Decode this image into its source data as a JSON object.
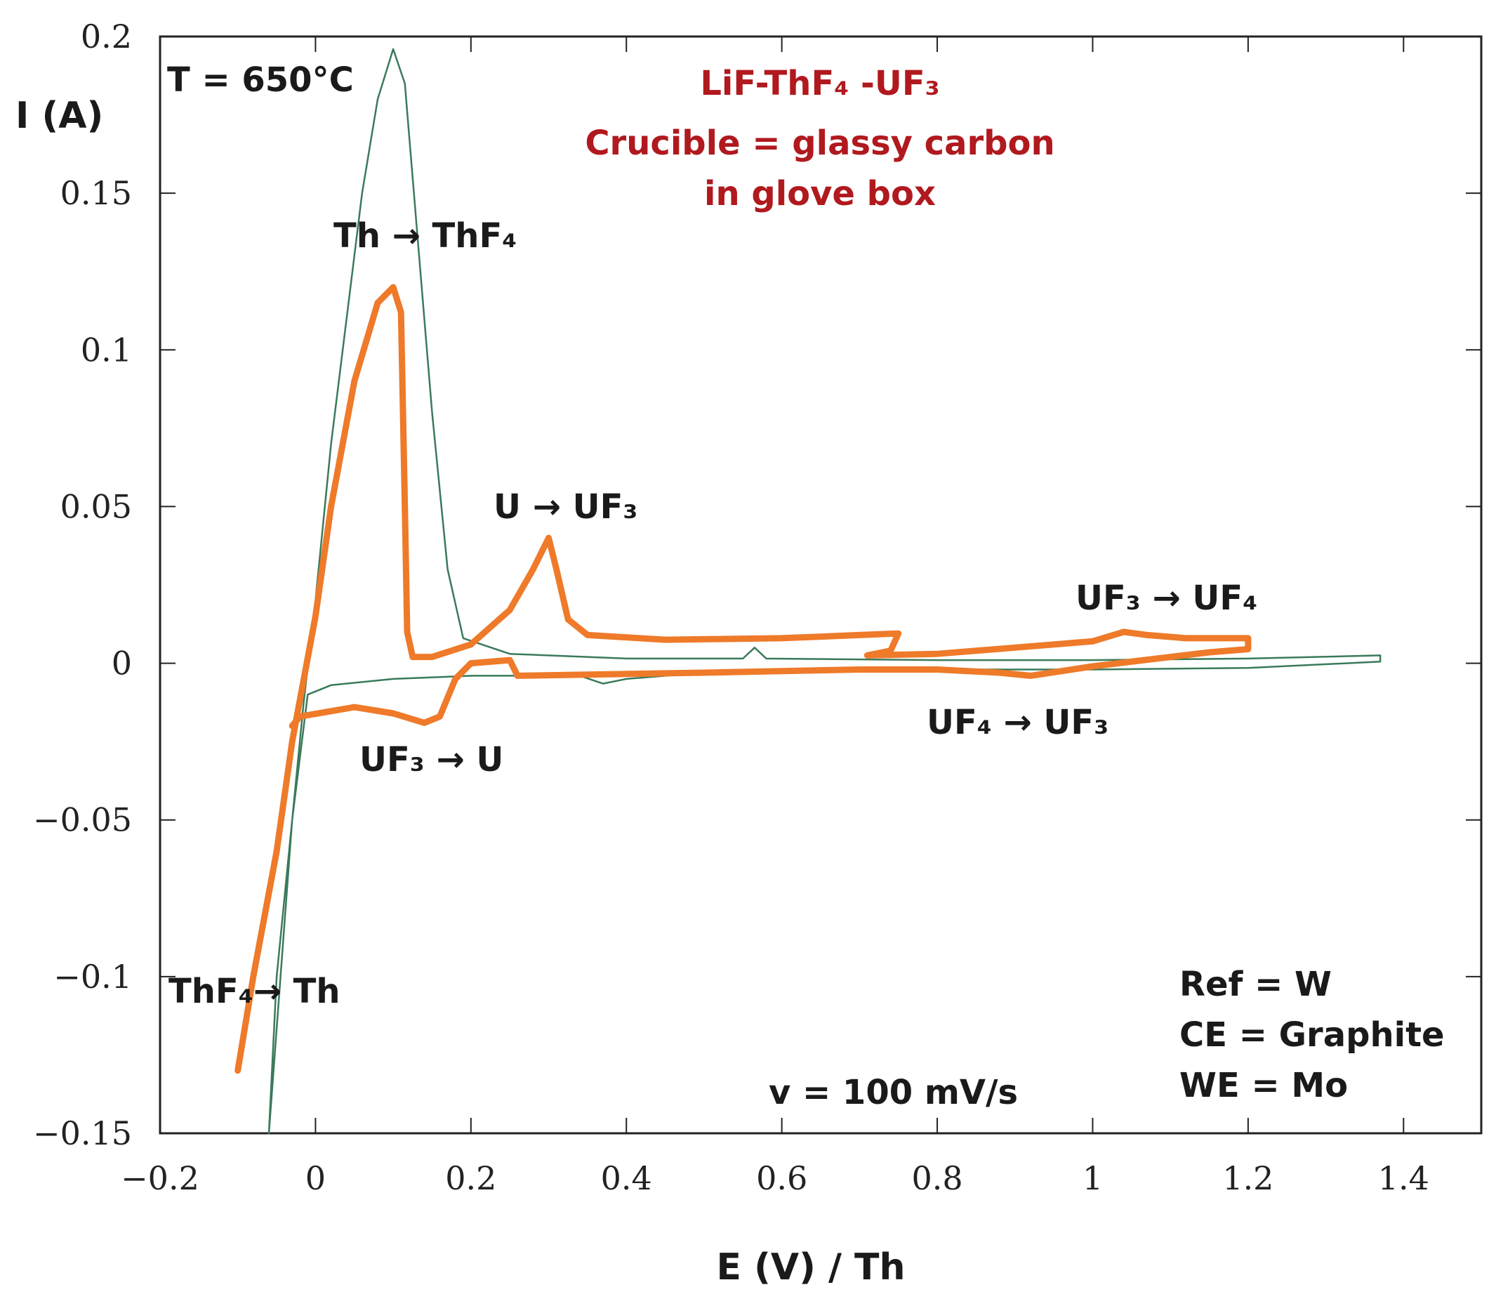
{
  "chart_data": {
    "type": "line",
    "xlabel": "E (V) / Th",
    "ylabel": "I (A)",
    "xlim": [
      -0.2,
      1.5
    ],
    "ylim": [
      -0.15,
      0.2
    ],
    "xticks": [
      -0.2,
      0,
      0.2,
      0.4,
      0.6,
      0.8,
      1,
      1.2,
      1.4
    ],
    "xtick_labels": [
      "−0.2",
      "0",
      "0.2",
      "0.4",
      "0.6",
      "0.8",
      "1",
      "1.2",
      "1.4"
    ],
    "yticks": [
      0.2,
      0.15,
      0.1,
      0.05,
      0,
      -0.05,
      -0.1,
      -0.15
    ],
    "ytick_labels": [
      "0.2",
      "0.15",
      "0.1",
      "0.05",
      "0",
      "−0.05",
      "−0.1",
      "−0.15"
    ],
    "series": [
      {
        "name": "LiF-ThF4 (green)",
        "color": "#3a7a5a",
        "points": [
          [
            -0.06,
            -0.15
          ],
          [
            -0.045,
            -0.1
          ],
          [
            -0.03,
            -0.05
          ],
          [
            -0.015,
            -0.012
          ],
          [
            0,
            0.02
          ],
          [
            0.02,
            0.07
          ],
          [
            0.04,
            0.11
          ],
          [
            0.06,
            0.15
          ],
          [
            0.08,
            0.18
          ],
          [
            0.1,
            0.196
          ],
          [
            0.115,
            0.185
          ],
          [
            0.13,
            0.14
          ],
          [
            0.15,
            0.08
          ],
          [
            0.17,
            0.03
          ],
          [
            0.19,
            0.008
          ],
          [
            0.25,
            0.003
          ],
          [
            0.4,
            0.0015
          ],
          [
            0.55,
            0.0015
          ],
          [
            0.565,
            0.005
          ],
          [
            0.58,
            0.0015
          ],
          [
            0.8,
            0.001
          ],
          [
            1.0,
            0.001
          ],
          [
            1.2,
            0.0015
          ],
          [
            1.37,
            0.0025
          ],
          [
            1.37,
            0.0005
          ],
          [
            1.2,
            -0.0015
          ],
          [
            1.0,
            -0.002
          ],
          [
            0.8,
            -0.002
          ],
          [
            0.5,
            -0.003
          ],
          [
            0.4,
            -0.005
          ],
          [
            0.37,
            -0.0065
          ],
          [
            0.34,
            -0.004
          ],
          [
            0.2,
            -0.004
          ],
          [
            0.1,
            -0.005
          ],
          [
            0.02,
            -0.007
          ],
          [
            -0.01,
            -0.01
          ],
          [
            -0.03,
            -0.05
          ],
          [
            -0.05,
            -0.1
          ],
          [
            -0.06,
            -0.15
          ]
        ]
      },
      {
        "name": "LiF-ThF4-UF3 (orange)",
        "color": "#ee7a2a",
        "points": [
          [
            -0.1,
            -0.13
          ],
          [
            -0.08,
            -0.1
          ],
          [
            -0.05,
            -0.06
          ],
          [
            -0.03,
            -0.025
          ],
          [
            0,
            0.015
          ],
          [
            0.02,
            0.05
          ],
          [
            0.05,
            0.09
          ],
          [
            0.08,
            0.115
          ],
          [
            0.1,
            0.12
          ],
          [
            0.11,
            0.112
          ],
          [
            0.115,
            0.05
          ],
          [
            0.118,
            0.01
          ],
          [
            0.125,
            0.002
          ],
          [
            0.15,
            0.002
          ],
          [
            0.2,
            0.006
          ],
          [
            0.25,
            0.017
          ],
          [
            0.28,
            0.03
          ],
          [
            0.3,
            0.04
          ],
          [
            0.31,
            0.03
          ],
          [
            0.325,
            0.014
          ],
          [
            0.35,
            0.009
          ],
          [
            0.45,
            0.0075
          ],
          [
            0.6,
            0.008
          ],
          [
            0.7,
            0.009
          ],
          [
            0.75,
            0.0095
          ],
          [
            0.74,
            0.004
          ],
          [
            0.71,
            0.0025
          ],
          [
            0.8,
            0.003
          ],
          [
            0.9,
            0.005
          ],
          [
            1.0,
            0.007
          ],
          [
            1.04,
            0.01
          ],
          [
            1.07,
            0.009
          ],
          [
            1.12,
            0.008
          ],
          [
            1.2,
            0.008
          ],
          [
            1.2,
            0.0045
          ],
          [
            1.15,
            0.0035
          ],
          [
            1.1,
            0.002
          ],
          [
            1.0,
            -0.001
          ],
          [
            0.92,
            -0.004
          ],
          [
            0.88,
            -0.003
          ],
          [
            0.8,
            -0.002
          ],
          [
            0.7,
            -0.002
          ],
          [
            0.5,
            -0.003
          ],
          [
            0.26,
            -0.004
          ],
          [
            0.25,
            0.001
          ],
          [
            0.2,
            0
          ],
          [
            0.18,
            -0.005
          ],
          [
            0.16,
            -0.017
          ],
          [
            0.14,
            -0.019
          ],
          [
            0.1,
            -0.016
          ],
          [
            0.05,
            -0.014
          ],
          [
            -0.02,
            -0.017
          ],
          [
            -0.03,
            -0.02
          ]
        ]
      }
    ],
    "annotations": [
      {
        "text": "T = 650°C",
        "at": [
          -0.2,
          0.19
        ]
      },
      {
        "text": "Th → ThF₄",
        "at": [
          0.02,
          0.135
        ]
      },
      {
        "text": "U → UF₃",
        "at": [
          0.23,
          0.05
        ]
      },
      {
        "text": "UF₃ → UF₄",
        "at": [
          0.97,
          0.021
        ]
      },
      {
        "text": "UF₄ → UF₃",
        "at": [
          0.79,
          -0.02
        ]
      },
      {
        "text": "UF₃ → U",
        "at": [
          0.06,
          -0.03
        ]
      },
      {
        "text": "ThF₄→ Th",
        "at": [
          -0.19,
          -0.105
        ]
      },
      {
        "text": "v = 100 mV/s",
        "at": [
          0.58,
          -0.138
        ]
      }
    ],
    "legend_box": {
      "title_line1": "LiF-ThF₄ -UF₃",
      "title_line2": "Crucible = glassy carbon",
      "title_line3": "in glove box"
    },
    "setup_info": [
      "Ref = W",
      "CE = Graphite",
      "WE = Mo"
    ],
    "title_color": "#b0191e"
  }
}
